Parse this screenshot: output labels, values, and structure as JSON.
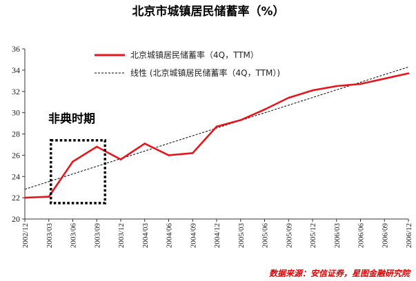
{
  "chart_data": {
    "type": "line",
    "title": "北京市城镇居民储蓄率（%）",
    "categories": [
      "2002/12",
      "2003/03",
      "2003/06",
      "2003/09",
      "2003/12",
      "2004/03",
      "2004/06",
      "2004/09",
      "2004/12",
      "2005/03",
      "2005/06",
      "2005/09",
      "2005/12",
      "2006/03",
      "2006/06",
      "2006/09",
      "2006/12"
    ],
    "series": [
      {
        "name": "北京城镇居民储蓄率（4Q，TTM）",
        "style": "solid",
        "color": "#e8141b",
        "values": [
          22.0,
          22.1,
          25.4,
          26.8,
          25.6,
          27.1,
          26.0,
          26.2,
          28.7,
          29.3,
          30.3,
          31.4,
          32.1,
          32.5,
          32.7,
          33.2,
          33.7
        ]
      },
      {
        "name": "线性 (北京城镇居民储蓄率（4Q，TTM）)",
        "style": "dashed",
        "color": "#000000",
        "trend_start": 22.8,
        "trend_end": 34.3
      }
    ],
    "ylim": [
      20,
      36
    ],
    "yticks": [
      20,
      22,
      24,
      26,
      28,
      30,
      32,
      34,
      36
    ],
    "grid": false,
    "legend_position": "top-left",
    "annotation": {
      "text": "非典时期",
      "box_from": "2003/03",
      "box_to": "2003/09",
      "box_y": [
        21.5,
        27.4
      ]
    },
    "source": "数据来源：安信证券，星图金融研究院"
  }
}
